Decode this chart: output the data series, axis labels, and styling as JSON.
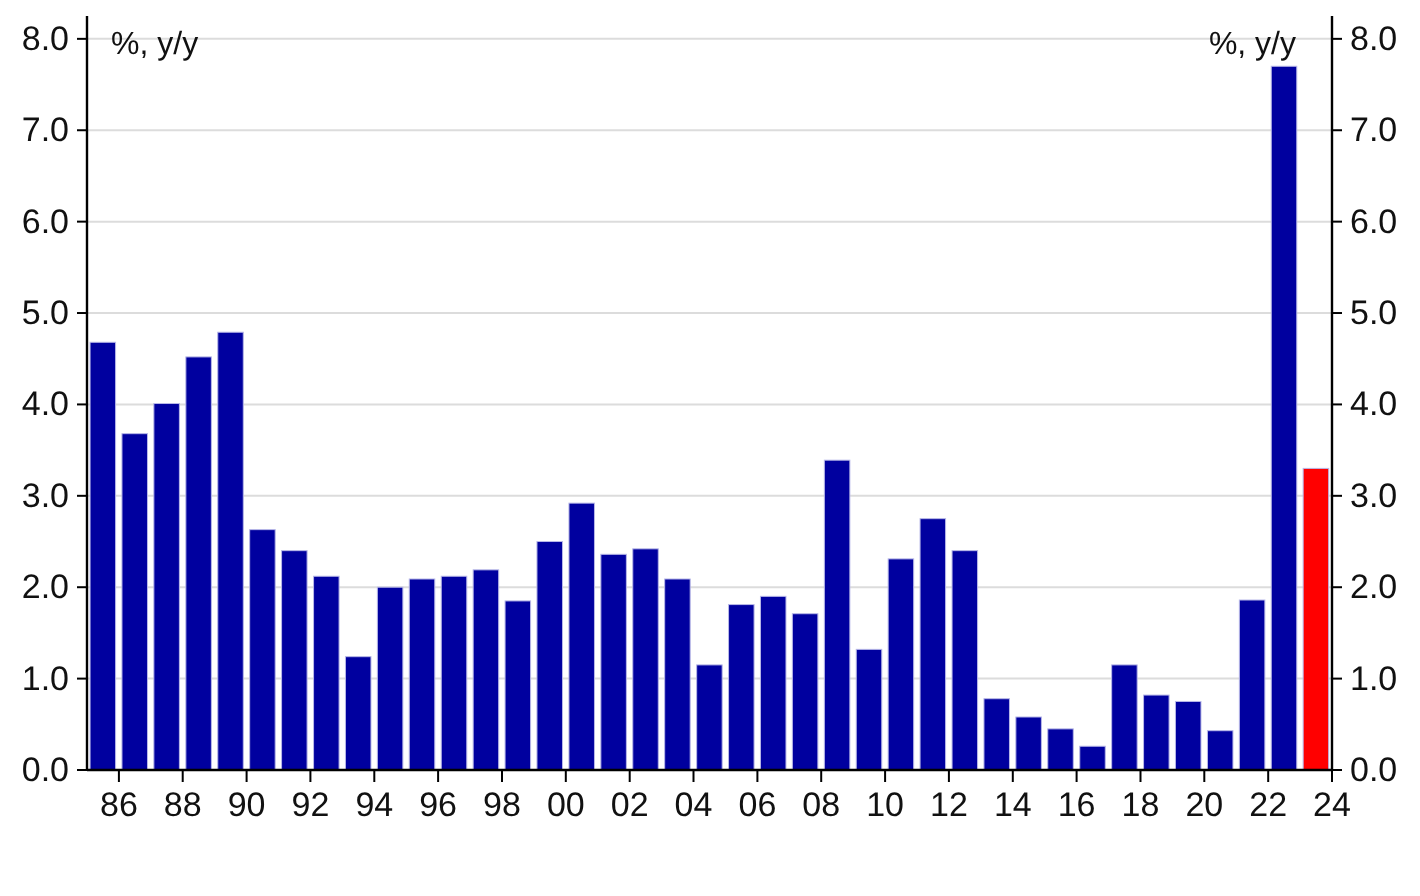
{
  "chart_data": {
    "type": "bar",
    "ylabel": "%, y/y",
    "y2label": "%, y/y",
    "x": [
      "1985-07",
      "1986-07",
      "1987-07",
      "1988-07",
      "1989-07",
      "1990-07",
      "1991-07",
      "1992-07",
      "1993-07",
      "1994-07",
      "1995-07",
      "1996-07",
      "1997-07",
      "1998-07",
      "1999-07",
      "2000-07",
      "2001-07",
      "2002-07",
      "2003-07",
      "2004-07",
      "2005-07",
      "2006-07",
      "2007-07",
      "2008-07",
      "2009-07",
      "2010-07",
      "2011-07",
      "2012-07",
      "2013-07",
      "2014-07",
      "2015-07",
      "2016-07",
      "2017-07",
      "2018-07",
      "2019-07",
      "2020-07",
      "2021-07",
      "2022-07",
      "2023-07"
    ],
    "values": [
      4.68,
      3.68,
      4.01,
      4.52,
      4.79,
      2.63,
      2.4,
      2.12,
      1.24,
      2.0,
      2.09,
      2.12,
      2.19,
      1.85,
      2.5,
      2.92,
      2.36,
      2.42,
      2.09,
      1.15,
      1.81,
      1.9,
      1.71,
      3.39,
      1.32,
      2.31,
      2.75,
      2.4,
      0.78,
      0.58,
      0.45,
      0.26,
      1.15,
      0.82,
      0.75,
      0.43,
      1.86,
      7.7,
      3.3
    ],
    "colors": [
      "#00009f",
      "#00009f",
      "#00009f",
      "#00009f",
      "#00009f",
      "#00009f",
      "#00009f",
      "#00009f",
      "#00009f",
      "#00009f",
      "#00009f",
      "#00009f",
      "#00009f",
      "#00009f",
      "#00009f",
      "#00009f",
      "#00009f",
      "#00009f",
      "#00009f",
      "#00009f",
      "#00009f",
      "#00009f",
      "#00009f",
      "#00009f",
      "#00009f",
      "#00009f",
      "#00009f",
      "#00009f",
      "#00009f",
      "#00009f",
      "#00009f",
      "#00009f",
      "#00009f",
      "#00009f",
      "#00009f",
      "#00009f",
      "#00009f",
      "#00009f",
      "#ff0000"
    ],
    "xlim": [
      "1985",
      "2024"
    ],
    "xticks": [
      {
        "value": "1986",
        "label": "86"
      },
      {
        "value": "1988",
        "label": "88"
      },
      {
        "value": "1990",
        "label": "90"
      },
      {
        "value": "1992",
        "label": "92"
      },
      {
        "value": "1994",
        "label": "94"
      },
      {
        "value": "1996",
        "label": "96"
      },
      {
        "value": "1998",
        "label": "98"
      },
      {
        "value": "2000",
        "label": "00"
      },
      {
        "value": "2002",
        "label": "02"
      },
      {
        "value": "2004",
        "label": "04"
      },
      {
        "value": "2006",
        "label": "06"
      },
      {
        "value": "2008",
        "label": "08"
      },
      {
        "value": "2010",
        "label": "10"
      },
      {
        "value": "2012",
        "label": "12"
      },
      {
        "value": "2014",
        "label": "14"
      },
      {
        "value": "2016",
        "label": "16"
      },
      {
        "value": "2018",
        "label": "18"
      },
      {
        "value": "2020",
        "label": "20"
      },
      {
        "value": "2022",
        "label": "22"
      },
      {
        "value": "2024",
        "label": "24"
      }
    ],
    "ylim": [
      0,
      8.25
    ],
    "yticks": [
      {
        "value": 0,
        "label": "0.0"
      },
      {
        "value": 1,
        "label": "1.0"
      },
      {
        "value": 2,
        "label": "2.0"
      },
      {
        "value": 3,
        "label": "3.0"
      },
      {
        "value": 4,
        "label": "4.0"
      },
      {
        "value": 5,
        "label": "5.0"
      },
      {
        "value": 6,
        "label": "6.0"
      },
      {
        "value": 7,
        "label": "7.0"
      },
      {
        "value": 8,
        "label": "8.0"
      }
    ],
    "y2lim": [
      0,
      8.25
    ],
    "y2ticks": [
      {
        "value": 0,
        "label": "0.0"
      },
      {
        "value": 1,
        "label": "1.0"
      },
      {
        "value": 2,
        "label": "2.0"
      },
      {
        "value": 3,
        "label": "3.0"
      },
      {
        "value": 4,
        "label": "4.0"
      },
      {
        "value": 5,
        "label": "5.0"
      },
      {
        "value": 6,
        "label": "6.0"
      },
      {
        "value": 7,
        "label": "7.0"
      },
      {
        "value": 8,
        "label": "8.0"
      }
    ],
    "grid": "y"
  }
}
